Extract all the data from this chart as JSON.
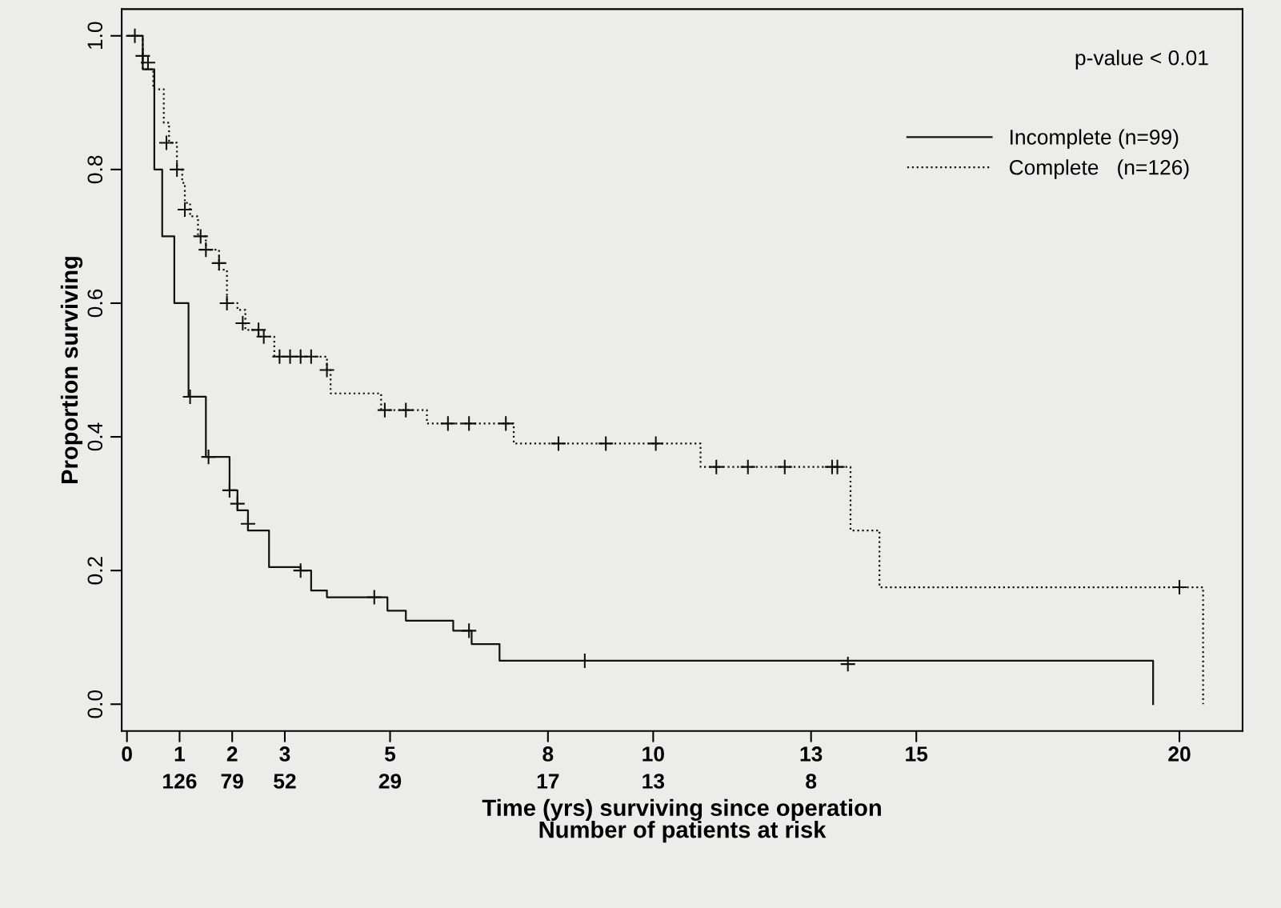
{
  "chart_data": {
    "type": "step",
    "xlabel": "Time (yrs) surviving since operation\nNumber of patients at risk",
    "ylabel": "Proportion surviving",
    "annotations": [
      "p-value < 0.01",
      "126",
      "79",
      "52",
      "29",
      "17",
      "13",
      "8"
    ],
    "xlim": [
      -0.1,
      21.2
    ],
    "ylim": [
      -0.04,
      1.04
    ],
    "xticks": [
      0,
      1,
      2,
      3,
      5,
      8,
      10,
      13,
      15,
      20
    ],
    "yticks": [
      {
        "value": 0,
        "label": "0.0"
      },
      {
        "value": 0.2,
        "label": "0.2"
      },
      {
        "value": 0.4,
        "label": "0.4"
      },
      {
        "value": 0.6,
        "label": "0.6"
      },
      {
        "value": 0.8,
        "label": "0.8"
      },
      {
        "value": 1,
        "label": "1.0"
      }
    ],
    "grid": false,
    "legend": "top right",
    "series": [
      {
        "name": "Incomplete (n=99)",
        "color": "#111111",
        "line_style": "solid",
        "marker": "none",
        "x": [
          0,
          0.3,
          0.52,
          0.67,
          0.9,
          1.17,
          1.5,
          1.95,
          2.1,
          2.3,
          2.7,
          3.3,
          3.5,
          3.8,
          4.95,
          5.3,
          6.2,
          6.55,
          7.08,
          19.5,
          19.5
        ],
        "values": [
          1.0,
          0.95,
          0.8,
          0.7,
          0.6,
          0.46,
          0.37,
          0.32,
          0.29,
          0.26,
          0.205,
          0.2,
          0.17,
          0.16,
          0.14,
          0.125,
          0.11,
          0.09,
          0.065,
          0.06,
          0
        ]
      },
      {
        "name": "Complete   (n=126)",
        "color": "#111111",
        "line_style": "dotted",
        "marker": "none",
        "x": [
          0,
          0.3,
          0.5,
          0.7,
          0.8,
          0.95,
          1.05,
          1.1,
          1.2,
          1.35,
          1.5,
          1.75,
          1.9,
          2.1,
          2.25,
          2.5,
          2.8,
          3.8,
          3.87,
          4.83,
          5.7,
          7.35,
          10.9,
          13.75,
          14.3,
          20.45,
          20.45
        ],
        "values": [
          1.0,
          0.95,
          0.92,
          0.87,
          0.84,
          0.8,
          0.78,
          0.75,
          0.73,
          0.7,
          0.68,
          0.65,
          0.6,
          0.59,
          0.56,
          0.55,
          0.52,
          0.5,
          0.465,
          0.44,
          0.42,
          0.39,
          0.355,
          0.26,
          0.175,
          0.175,
          0
        ]
      },
      {
        "type": "scatter",
        "color": "#111111",
        "marker": "cross",
        "x": [
          0.3,
          1.2,
          1.55,
          1.95,
          2.1,
          2.3,
          3.3,
          4.7,
          6.5,
          8.7,
          13.7
        ],
        "values": [
          0.97,
          0.46,
          0.37,
          0.32,
          0.3,
          0.27,
          0.2,
          0.16,
          0.11,
          0.065,
          0.06
        ]
      },
      {
        "type": "scatter",
        "color": "#111111",
        "marker": "cross",
        "x": [
          0.15,
          0.4,
          0.75,
          0.95,
          1.1,
          1.4,
          1.5,
          1.75,
          1.9,
          2.2,
          2.5,
          2.6,
          2.9,
          3.1,
          3.3,
          3.5,
          3.8,
          4.9,
          5.3,
          6.1,
          6.5,
          7.2,
          8.2,
          9.1,
          10.05,
          11.2,
          11.8,
          12.5,
          13.4,
          13.5,
          20.0
        ],
        "values": [
          1.0,
          0.96,
          0.84,
          0.8,
          0.74,
          0.7,
          0.68,
          0.66,
          0.6,
          0.57,
          0.56,
          0.55,
          0.52,
          0.52,
          0.52,
          0.52,
          0.5,
          0.44,
          0.44,
          0.42,
          0.42,
          0.42,
          0.39,
          0.39,
          0.39,
          0.355,
          0.355,
          0.355,
          0.355,
          0.355,
          0.175
        ]
      }
    ]
  }
}
